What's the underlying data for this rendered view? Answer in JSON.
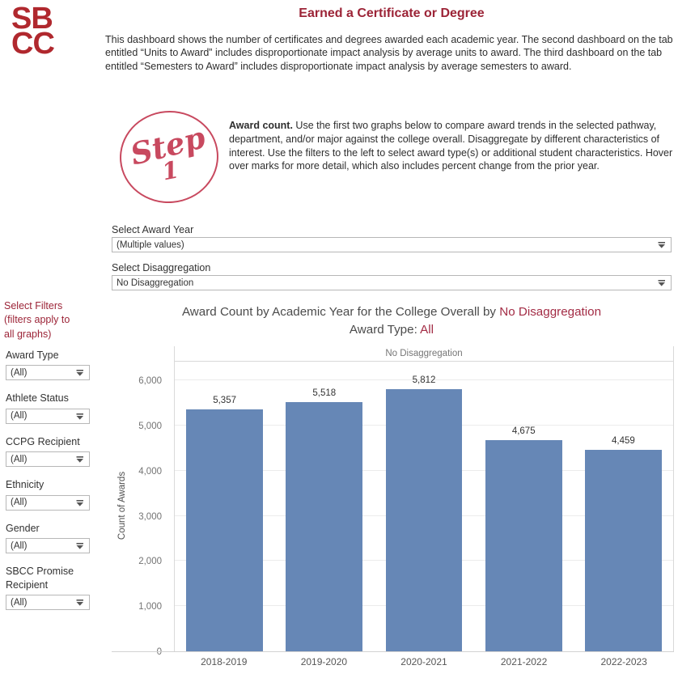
{
  "logo": {
    "line1": "SB",
    "line2": "CC"
  },
  "page": {
    "title": "Earned a Certificate or Degree",
    "description": "This dashboard shows the number of certificates and degrees awarded each academic year. The second dashboard on the tab entitled “Units to Award” includes disproportionate impact analysis by average units to award. The third dashboard on the tab entitled “Semesters to Award” includes disproportionate impact analysis by average semesters to award."
  },
  "step": {
    "badge_word": "Step",
    "badge_number": "1",
    "lead": "Award count.",
    "body": " Use the first two graphs below to compare award trends in the selected pathway, department, and/or major against the college overall. Disaggregate by different characteristics of interest. Use the filters to the left to select award type(s) or additional student characteristics. Hover over marks for more detail, which also includes percent change from the prior year."
  },
  "selectors": {
    "award_year_label": "Select Award Year",
    "award_year_value": "(Multiple values)",
    "disaggregation_label": "Select Disaggregation",
    "disaggregation_value": "No Disaggregation"
  },
  "sidebar": {
    "heading": "Select Filters (filters apply to all graphs)",
    "filters": [
      {
        "label": "Award Type",
        "value": "(All)"
      },
      {
        "label": "Athlete Status",
        "value": "(All)"
      },
      {
        "label": "CCPG Recipient",
        "value": "(All)"
      },
      {
        "label": "Ethnicity",
        "value": "(All)"
      },
      {
        "label": "Gender",
        "value": "(All)"
      },
      {
        "label": "SBCC Promise Recipient",
        "value": "(All)"
      }
    ]
  },
  "chart": {
    "title_prefix": "Award Count by Academic Year for the College Overall by ",
    "title_highlight": "No Disaggregation",
    "subtitle_prefix": "Award Type: ",
    "subtitle_highlight": "All"
  },
  "chart_data": {
    "type": "bar",
    "title": "Award Count by Academic Year for the College Overall by No Disaggregation",
    "subtitle": "Award Type: All",
    "pane_header": "No Disaggregation",
    "categories": [
      "2018-2019",
      "2019-2020",
      "2020-2021",
      "2021-2022",
      "2022-2023"
    ],
    "values": [
      5357,
      5518,
      5812,
      4675,
      4459
    ],
    "value_labels": [
      "5,357",
      "5,518",
      "5,812",
      "4,675",
      "4,459"
    ],
    "xlabel": "",
    "ylabel": "Count of Awards",
    "ylim": [
      0,
      6420
    ],
    "yticks": [
      0,
      1000,
      2000,
      3000,
      4000,
      5000,
      6000
    ],
    "ytick_labels": [
      "0",
      "1,000",
      "2,000",
      "3,000",
      "4,000",
      "5,000",
      "6,000"
    ],
    "grid": true,
    "legend": "none",
    "bar_color": "#6687b6"
  },
  "colors": {
    "brand_red": "#b0282e",
    "heading_maroon": "#9c2437",
    "title_highlight": "#a32c45",
    "step_pink": "#c8495f",
    "bar_blue": "#6687b6",
    "gridline": "#ebebeb",
    "pane_border": "#d9d9d9"
  }
}
